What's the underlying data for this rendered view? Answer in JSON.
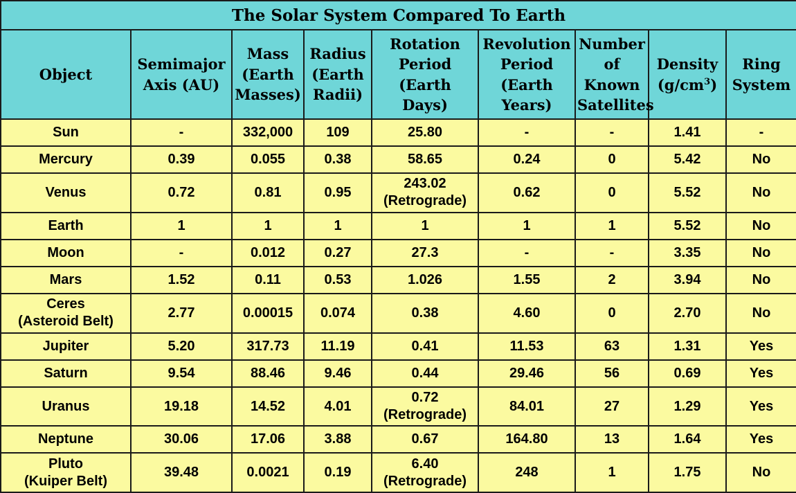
{
  "title": "The Solar System Compared To Earth",
  "columns": [
    {
      "lines": [
        "Object"
      ]
    },
    {
      "lines": [
        "Semimajor",
        "Axis (AU)"
      ]
    },
    {
      "lines": [
        "Mass",
        "(Earth",
        "Masses)"
      ]
    },
    {
      "lines": [
        "Radius",
        "(Earth",
        "Radii)"
      ]
    },
    {
      "lines": [
        "Rotation",
        "Period",
        "(Earth",
        "Days)"
      ]
    },
    {
      "lines": [
        "Revolution",
        "Period",
        "(Earth",
        "Years)"
      ]
    },
    {
      "lines": [
        "Number",
        "of",
        "Known",
        "Satellites"
      ]
    },
    {
      "lines": [
        "Density",
        "(g/cm",
        "3",
        ")"
      ]
    },
    {
      "lines": [
        "Ring",
        "System"
      ]
    }
  ],
  "rows": [
    {
      "cells": [
        [
          "Sun"
        ],
        [
          "-"
        ],
        [
          "332,000"
        ],
        [
          "109"
        ],
        [
          "25.80"
        ],
        [
          "-"
        ],
        [
          "-"
        ],
        [
          "1.41"
        ],
        [
          "-"
        ]
      ]
    },
    {
      "cells": [
        [
          "Mercury"
        ],
        [
          "0.39"
        ],
        [
          "0.055"
        ],
        [
          "0.38"
        ],
        [
          "58.65"
        ],
        [
          "0.24"
        ],
        [
          "0"
        ],
        [
          "5.42"
        ],
        [
          "No"
        ]
      ]
    },
    {
      "cells": [
        [
          "Venus"
        ],
        [
          "0.72"
        ],
        [
          "0.81"
        ],
        [
          "0.95"
        ],
        [
          "243.02",
          "(Retrograde)"
        ],
        [
          "0.62"
        ],
        [
          "0"
        ],
        [
          "5.52"
        ],
        [
          "No"
        ]
      ]
    },
    {
      "cells": [
        [
          "Earth"
        ],
        [
          "1"
        ],
        [
          "1"
        ],
        [
          "1"
        ],
        [
          "1"
        ],
        [
          "1"
        ],
        [
          "1"
        ],
        [
          "5.52"
        ],
        [
          "No"
        ]
      ]
    },
    {
      "cells": [
        [
          "Moon"
        ],
        [
          "-"
        ],
        [
          "0.012"
        ],
        [
          "0.27"
        ],
        [
          "27.3"
        ],
        [
          "-"
        ],
        [
          "-"
        ],
        [
          "3.35"
        ],
        [
          "No"
        ]
      ]
    },
    {
      "cells": [
        [
          "Mars"
        ],
        [
          "1.52"
        ],
        [
          "0.11"
        ],
        [
          "0.53"
        ],
        [
          "1.026"
        ],
        [
          "1.55"
        ],
        [
          "2"
        ],
        [
          "3.94"
        ],
        [
          "No"
        ]
      ]
    },
    {
      "cells": [
        [
          "Ceres",
          "(Asteroid Belt)"
        ],
        [
          "2.77"
        ],
        [
          "0.00015"
        ],
        [
          "0.074"
        ],
        [
          "0.38"
        ],
        [
          "4.60"
        ],
        [
          "0"
        ],
        [
          "2.70"
        ],
        [
          "No"
        ]
      ]
    },
    {
      "cells": [
        [
          "Jupiter"
        ],
        [
          "5.20"
        ],
        [
          "317.73"
        ],
        [
          "11.19"
        ],
        [
          "0.41"
        ],
        [
          "11.53"
        ],
        [
          "63"
        ],
        [
          "1.31"
        ],
        [
          "Yes"
        ]
      ]
    },
    {
      "cells": [
        [
          "Saturn"
        ],
        [
          "9.54"
        ],
        [
          "88.46"
        ],
        [
          "9.46"
        ],
        [
          "0.44"
        ],
        [
          "29.46"
        ],
        [
          "56"
        ],
        [
          "0.69"
        ],
        [
          "Yes"
        ]
      ]
    },
    {
      "cells": [
        [
          "Uranus"
        ],
        [
          "19.18"
        ],
        [
          "14.52"
        ],
        [
          "4.01"
        ],
        [
          "0.72",
          "(Retrograde)"
        ],
        [
          "84.01"
        ],
        [
          "27"
        ],
        [
          "1.29"
        ],
        [
          "Yes"
        ]
      ]
    },
    {
      "cells": [
        [
          "Neptune"
        ],
        [
          "30.06"
        ],
        [
          "17.06"
        ],
        [
          "3.88"
        ],
        [
          "0.67"
        ],
        [
          "164.80"
        ],
        [
          "13"
        ],
        [
          "1.64"
        ],
        [
          "Yes"
        ]
      ]
    },
    {
      "cells": [
        [
          "Pluto",
          "(Kuiper Belt)"
        ],
        [
          "39.48"
        ],
        [
          "0.0021"
        ],
        [
          "0.19"
        ],
        [
          "6.40",
          "(Retrograde)"
        ],
        [
          "248"
        ],
        [
          "1"
        ],
        [
          "1.75"
        ],
        [
          "No"
        ]
      ]
    }
  ]
}
